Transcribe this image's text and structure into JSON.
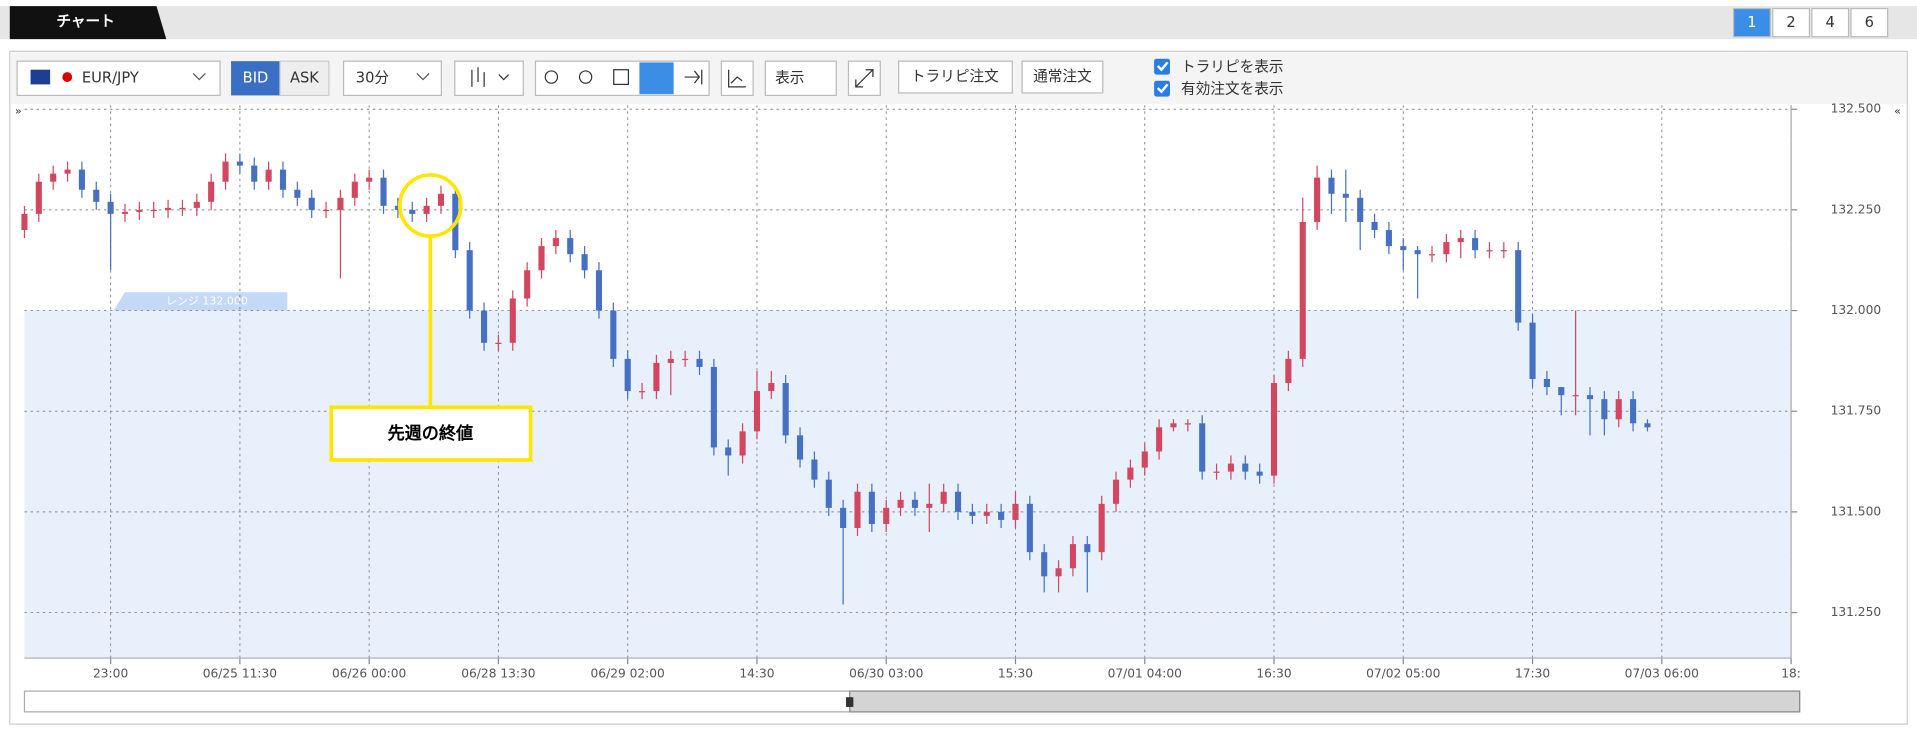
{
  "tab": {
    "title": "チャート"
  },
  "pages": [
    "1",
    "2",
    "4",
    "6"
  ],
  "toolbar": {
    "symbol": "EUR/JPY",
    "price_types": [
      "BID",
      "ASK"
    ],
    "interval": "30分",
    "display": "表示",
    "trap_order": "トラリピ注文",
    "normal_order": "通常注文",
    "checkboxes": [
      "トラリピを表示",
      "有効注文を表示"
    ]
  },
  "chart_data": {
    "type": "candlestick",
    "annotation": "先週の終値",
    "up_color": "#d2475f",
    "down_color": "#4670c2",
    "grid": true,
    "range": {
      "label": "レンジ 132.000",
      "value": 132.0
    },
    "xlim": [
      0,
      123
    ],
    "xticks": [
      {
        "value": 6,
        "label": "23:00"
      },
      {
        "value": 15,
        "label": "06/25 11:30"
      },
      {
        "value": 24,
        "label": "06/26 00:00"
      },
      {
        "value": 33,
        "label": "06/28 13:30"
      },
      {
        "value": 42,
        "label": "06/29 02:00"
      },
      {
        "value": 51,
        "label": "14:30"
      },
      {
        "value": 60,
        "label": "06/30 03:00"
      },
      {
        "value": 69,
        "label": "15:30"
      },
      {
        "value": 78,
        "label": "07/01 04:00"
      },
      {
        "value": 87,
        "label": "16:30"
      },
      {
        "value": 96,
        "label": "07/02 05:00"
      },
      {
        "value": 105,
        "label": "17:30"
      },
      {
        "value": 114,
        "label": "07/03 06:00"
      },
      {
        "value": 123,
        "label": "18:"
      }
    ],
    "ylim": [
      131.137,
      132.51
    ],
    "yticks": [
      {
        "value": 132.5,
        "label": "132.500"
      },
      {
        "value": 132.25,
        "label": "132.250"
      },
      {
        "value": 132.0,
        "label": "132.000"
      },
      {
        "value": 131.75,
        "label": "131.750"
      },
      {
        "value": 131.5,
        "label": "131.500"
      },
      {
        "value": 131.25,
        "label": "131.250"
      }
    ],
    "open": [
      132.2,
      132.24,
      132.32,
      132.34,
      132.35,
      132.3,
      132.27,
      132.24,
      132.245,
      132.25,
      132.25,
      132.255,
      132.255,
      132.27,
      132.32,
      132.37,
      132.36,
      132.32,
      132.35,
      132.3,
      132.28,
      132.25,
      132.25,
      132.28,
      132.32,
      132.33,
      132.26,
      132.25,
      132.24,
      132.26,
      132.29,
      132.15,
      132.0,
      131.92,
      131.92,
      132.03,
      132.1,
      132.16,
      132.18,
      132.14,
      132.1,
      132.0,
      131.88,
      131.8,
      131.8,
      131.87,
      131.88,
      131.88,
      131.86,
      131.66,
      131.64,
      131.7,
      131.8,
      131.82,
      131.69,
      131.63,
      131.58,
      131.51,
      131.46,
      131.55,
      131.47,
      131.51,
      131.53,
      131.51,
      131.52,
      131.55,
      131.5,
      131.49,
      131.5,
      131.48,
      131.52,
      131.4,
      131.34,
      131.36,
      131.42,
      131.4,
      131.52,
      131.58,
      131.61,
      131.65,
      131.71,
      131.72,
      131.72,
      131.6,
      131.6,
      131.62,
      131.6,
      131.59,
      131.82,
      131.88,
      132.22,
      132.33,
      132.29,
      132.28,
      132.22,
      132.2,
      132.16,
      132.15,
      132.14,
      132.14,
      132.17,
      132.18,
      132.15,
      132.15,
      132.15,
      131.97,
      131.83,
      131.81,
      131.79,
      131.79,
      131.78,
      131.73,
      131.78,
      131.72
    ],
    "high": [
      132.26,
      132.34,
      132.36,
      132.37,
      132.37,
      132.32,
      132.29,
      132.265,
      132.27,
      132.27,
      132.275,
      132.275,
      132.29,
      132.34,
      132.39,
      132.39,
      132.38,
      132.37,
      132.37,
      132.32,
      132.3,
      132.27,
      132.3,
      132.34,
      132.35,
      132.35,
      132.28,
      132.27,
      132.28,
      132.31,
      132.31,
      132.17,
      132.02,
      131.94,
      132.05,
      132.12,
      132.18,
      132.2,
      132.2,
      132.16,
      132.12,
      132.02,
      131.9,
      131.82,
      131.89,
      131.9,
      131.9,
      131.9,
      131.88,
      131.68,
      131.72,
      131.85,
      131.85,
      131.84,
      131.71,
      131.65,
      131.6,
      131.53,
      131.57,
      131.57,
      131.53,
      131.55,
      131.55,
      131.57,
      131.57,
      131.57,
      131.52,
      131.52,
      131.52,
      131.55,
      131.54,
      131.42,
      131.38,
      131.44,
      131.44,
      131.54,
      131.6,
      131.63,
      131.67,
      131.73,
      131.73,
      131.73,
      131.74,
      131.62,
      131.64,
      131.64,
      131.62,
      131.84,
      131.9,
      132.28,
      132.36,
      132.35,
      132.35,
      132.3,
      132.24,
      132.22,
      132.18,
      132.16,
      132.16,
      132.19,
      132.2,
      132.2,
      132.17,
      132.17,
      132.17,
      131.99,
      131.85,
      131.81,
      132.0,
      131.81,
      131.8,
      131.8,
      131.8,
      131.73
    ],
    "low": [
      132.18,
      132.22,
      132.3,
      132.32,
      132.28,
      132.25,
      132.1,
      132.22,
      132.225,
      132.23,
      132.23,
      132.235,
      132.235,
      132.25,
      132.3,
      132.34,
      132.3,
      132.3,
      132.28,
      132.26,
      132.23,
      132.23,
      132.08,
      132.26,
      132.3,
      132.24,
      132.23,
      132.22,
      132.22,
      132.24,
      132.13,
      131.98,
      131.9,
      131.9,
      131.9,
      132.01,
      132.08,
      132.14,
      132.12,
      132.08,
      131.98,
      131.86,
      131.78,
      131.78,
      131.78,
      131.79,
      131.86,
      131.84,
      131.64,
      131.59,
      131.62,
      131.68,
      131.78,
      131.67,
      131.61,
      131.56,
      131.49,
      131.27,
      131.44,
      131.45,
      131.45,
      131.49,
      131.49,
      131.45,
      131.5,
      131.48,
      131.47,
      131.47,
      131.46,
      131.46,
      131.38,
      131.3,
      131.3,
      131.34,
      131.3,
      131.38,
      131.5,
      131.56,
      131.59,
      131.63,
      131.7,
      131.7,
      131.58,
      131.58,
      131.58,
      131.58,
      131.57,
      131.57,
      131.8,
      131.86,
      132.2,
      132.24,
      132.22,
      132.15,
      132.18,
      132.14,
      132.1,
      132.03,
      132.12,
      132.12,
      132.13,
      132.13,
      132.13,
      132.13,
      131.95,
      131.81,
      131.79,
      131.74,
      131.74,
      131.69,
      131.69,
      131.71,
      131.7,
      131.7
    ],
    "close": [
      132.24,
      132.32,
      132.34,
      132.35,
      132.3,
      132.27,
      132.24,
      132.245,
      132.25,
      132.25,
      132.255,
      132.255,
      132.27,
      132.32,
      132.37,
      132.36,
      132.32,
      132.35,
      132.3,
      132.28,
      132.25,
      132.25,
      132.28,
      132.32,
      132.33,
      132.26,
      132.25,
      132.24,
      132.26,
      132.29,
      132.15,
      132.0,
      131.92,
      131.92,
      132.03,
      132.1,
      132.16,
      132.18,
      132.14,
      132.1,
      132.0,
      131.88,
      131.8,
      131.8,
      131.87,
      131.88,
      131.88,
      131.86,
      131.66,
      131.64,
      131.7,
      131.8,
      131.82,
      131.69,
      131.63,
      131.58,
      131.51,
      131.46,
      131.55,
      131.47,
      131.51,
      131.53,
      131.51,
      131.52,
      131.55,
      131.5,
      131.49,
      131.5,
      131.48,
      131.52,
      131.4,
      131.34,
      131.36,
      131.42,
      131.4,
      131.52,
      131.58,
      131.61,
      131.65,
      131.71,
      131.72,
      131.72,
      131.6,
      131.6,
      131.62,
      131.6,
      131.59,
      131.82,
      131.88,
      132.22,
      132.33,
      132.29,
      132.28,
      132.22,
      132.2,
      132.16,
      132.15,
      132.14,
      132.14,
      132.17,
      132.18,
      132.15,
      132.15,
      132.15,
      131.97,
      131.83,
      131.81,
      131.79,
      131.79,
      131.78,
      131.73,
      131.78,
      131.72,
      131.71
    ]
  }
}
